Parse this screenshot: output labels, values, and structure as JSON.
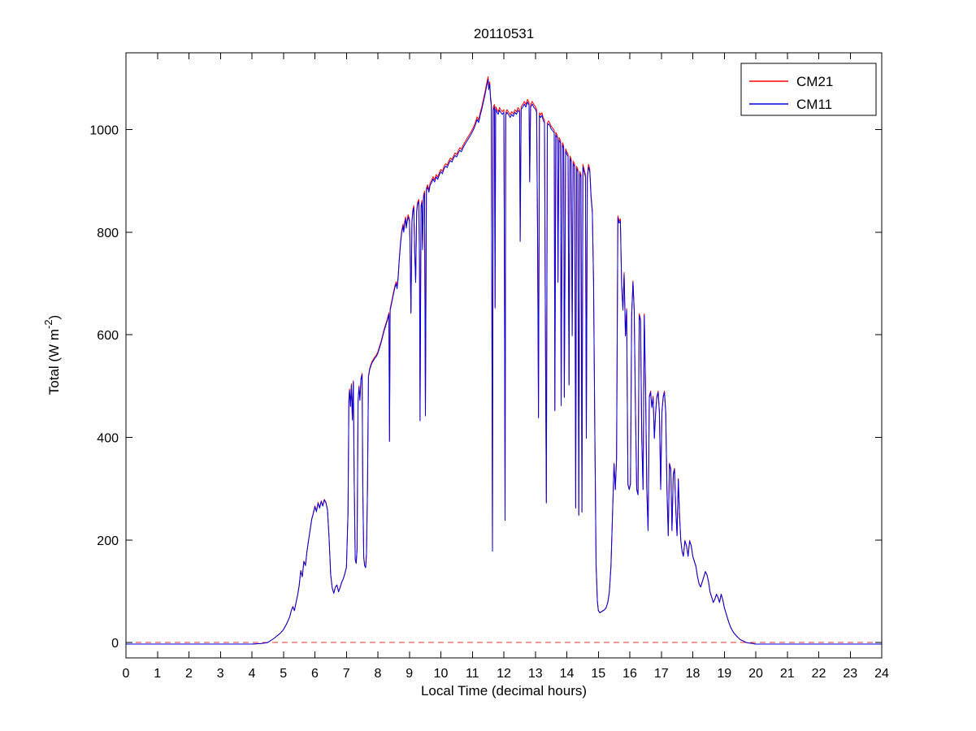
{
  "chart_data": {
    "type": "line",
    "title": "20110531",
    "xlabel": "Local Time (decimal hours)",
    "ylabel": "Total (W m⁻²)",
    "ylabel_parts": [
      "Total (W m",
      "-2",
      ")"
    ],
    "xlim": [
      0,
      24
    ],
    "ylim": [
      -30,
      1150
    ],
    "xticks": [
      0,
      1,
      2,
      3,
      4,
      5,
      6,
      7,
      8,
      9,
      10,
      11,
      12,
      13,
      14,
      15,
      16,
      17,
      18,
      19,
      20,
      21,
      22,
      23,
      24
    ],
    "yticks": [
      0,
      200,
      400,
      600,
      800,
      1000
    ],
    "grid": false,
    "legend_location": "northeast",
    "zero_line": {
      "y": 0,
      "color": "#e83030",
      "style": "dashed"
    },
    "series": [
      {
        "name": "CM21",
        "color": "#ff0000",
        "scale": 1.005
      },
      {
        "name": "CM11",
        "color": "#0000dd",
        "scale": 1.0
      }
    ],
    "points": [
      [
        0,
        -3
      ],
      [
        0.5,
        -3
      ],
      [
        1,
        -3
      ],
      [
        1.5,
        -3
      ],
      [
        2,
        -3
      ],
      [
        2.5,
        -3
      ],
      [
        3,
        -3
      ],
      [
        3.5,
        -3
      ],
      [
        4,
        -3
      ],
      [
        4.3,
        -2
      ],
      [
        4.5,
        0
      ],
      [
        4.6,
        4
      ],
      [
        4.7,
        8
      ],
      [
        4.8,
        13
      ],
      [
        4.9,
        18
      ],
      [
        5,
        25
      ],
      [
        5.1,
        36
      ],
      [
        5.2,
        50
      ],
      [
        5.25,
        62
      ],
      [
        5.3,
        70
      ],
      [
        5.35,
        62
      ],
      [
        5.4,
        78
      ],
      [
        5.45,
        92
      ],
      [
        5.5,
        110
      ],
      [
        5.55,
        140
      ],
      [
        5.6,
        128
      ],
      [
        5.65,
        158
      ],
      [
        5.7,
        150
      ],
      [
        5.75,
        178
      ],
      [
        5.8,
        200
      ],
      [
        5.85,
        220
      ],
      [
        5.9,
        240
      ],
      [
        5.95,
        252
      ],
      [
        6,
        265
      ],
      [
        6.05,
        255
      ],
      [
        6.1,
        272
      ],
      [
        6.15,
        262
      ],
      [
        6.2,
        275
      ],
      [
        6.25,
        266
      ],
      [
        6.3,
        278
      ],
      [
        6.35,
        272
      ],
      [
        6.4,
        258
      ],
      [
        6.45,
        205
      ],
      [
        6.5,
        132
      ],
      [
        6.55,
        106
      ],
      [
        6.6,
        96
      ],
      [
        6.65,
        108
      ],
      [
        6.7,
        112
      ],
      [
        6.75,
        99
      ],
      [
        6.8,
        107
      ],
      [
        6.85,
        117
      ],
      [
        6.9,
        124
      ],
      [
        6.95,
        134
      ],
      [
        7,
        146
      ],
      [
        7.05,
        250
      ],
      [
        7.08,
        470
      ],
      [
        7.1,
        492
      ],
      [
        7.13,
        460
      ],
      [
        7.16,
        502
      ],
      [
        7.19,
        434
      ],
      [
        7.22,
        508
      ],
      [
        7.25,
        310
      ],
      [
        7.28,
        162
      ],
      [
        7.31,
        154
      ],
      [
        7.34,
        182
      ],
      [
        7.37,
        470
      ],
      [
        7.4,
        498
      ],
      [
        7.43,
        472
      ],
      [
        7.46,
        512
      ],
      [
        7.5,
        522
      ],
      [
        7.52,
        305
      ],
      [
        7.55,
        166
      ],
      [
        7.58,
        150
      ],
      [
        7.61,
        146
      ],
      [
        7.64,
        172
      ],
      [
        7.67,
        300
      ],
      [
        7.7,
        518
      ],
      [
        7.74,
        532
      ],
      [
        7.78,
        540
      ],
      [
        7.82,
        546
      ],
      [
        7.86,
        550
      ],
      [
        7.9,
        554
      ],
      [
        7.95,
        558
      ],
      [
        8,
        564
      ],
      [
        8.05,
        574
      ],
      [
        8.1,
        584
      ],
      [
        8.15,
        596
      ],
      [
        8.2,
        608
      ],
      [
        8.25,
        618
      ],
      [
        8.3,
        628
      ],
      [
        8.35,
        640
      ],
      [
        8.37,
        392
      ],
      [
        8.39,
        648
      ],
      [
        8.44,
        662
      ],
      [
        8.49,
        678
      ],
      [
        8.54,
        692
      ],
      [
        8.58,
        700
      ],
      [
        8.61,
        690
      ],
      [
        8.64,
        708
      ],
      [
        8.68,
        745
      ],
      [
        8.72,
        778
      ],
      [
        8.76,
        800
      ],
      [
        8.8,
        812
      ],
      [
        8.82,
        800
      ],
      [
        8.85,
        816
      ],
      [
        8.88,
        826
      ],
      [
        8.9,
        808
      ],
      [
        8.93,
        820
      ],
      [
        8.96,
        830
      ],
      [
        9,
        822
      ],
      [
        9.02,
        782
      ],
      [
        9.05,
        642
      ],
      [
        9.08,
        818
      ],
      [
        9.11,
        840
      ],
      [
        9.14,
        848
      ],
      [
        9.17,
        762
      ],
      [
        9.2,
        702
      ],
      [
        9.23,
        838
      ],
      [
        9.26,
        854
      ],
      [
        9.3,
        860
      ],
      [
        9.32,
        742
      ],
      [
        9.34,
        432
      ],
      [
        9.37,
        848
      ],
      [
        9.4,
        858
      ],
      [
        9.42,
        766
      ],
      [
        9.45,
        868
      ],
      [
        9.48,
        876
      ],
      [
        9.51,
        442
      ],
      [
        9.54,
        882
      ],
      [
        9.58,
        888
      ],
      [
        9.62,
        878
      ],
      [
        9.66,
        892
      ],
      [
        9.7,
        896
      ],
      [
        9.75,
        904
      ],
      [
        9.8,
        898
      ],
      [
        9.85,
        908
      ],
      [
        9.9,
        903
      ],
      [
        9.95,
        912
      ],
      [
        10,
        918
      ],
      [
        10.05,
        914
      ],
      [
        10.1,
        924
      ],
      [
        10.15,
        929
      ],
      [
        10.2,
        926
      ],
      [
        10.25,
        934
      ],
      [
        10.3,
        940
      ],
      [
        10.35,
        937
      ],
      [
        10.4,
        944
      ],
      [
        10.45,
        950
      ],
      [
        10.5,
        947
      ],
      [
        10.55,
        954
      ],
      [
        10.6,
        960
      ],
      [
        10.65,
        957
      ],
      [
        10.7,
        964
      ],
      [
        10.75,
        970
      ],
      [
        10.8,
        975
      ],
      [
        10.85,
        980
      ],
      [
        10.9,
        985
      ],
      [
        10.95,
        990
      ],
      [
        11,
        996
      ],
      [
        11.05,
        1002
      ],
      [
        11.1,
        1010
      ],
      [
        11.15,
        1020
      ],
      [
        11.2,
        1014
      ],
      [
        11.25,
        1028
      ],
      [
        11.3,
        1040
      ],
      [
        11.35,
        1054
      ],
      [
        11.4,
        1068
      ],
      [
        11.45,
        1084
      ],
      [
        11.5,
        1098
      ],
      [
        11.52,
        1078
      ],
      [
        11.55,
        1088
      ],
      [
        11.58,
        1058
      ],
      [
        11.6,
        1048
      ],
      [
        11.62,
        640
      ],
      [
        11.64,
        178
      ],
      [
        11.66,
        1038
      ],
      [
        11.7,
        1044
      ],
      [
        11.72,
        652
      ],
      [
        11.74,
        1040
      ],
      [
        11.78,
        1034
      ],
      [
        11.82,
        1030
      ],
      [
        11.86,
        1038
      ],
      [
        11.9,
        1034
      ],
      [
        11.95,
        1030
      ],
      [
        12,
        1034
      ],
      [
        12.02,
        700
      ],
      [
        12.04,
        238
      ],
      [
        12.06,
        1028
      ],
      [
        12.1,
        1034
      ],
      [
        12.15,
        1029
      ],
      [
        12.2,
        1024
      ],
      [
        12.25,
        1030
      ],
      [
        12.3,
        1026
      ],
      [
        12.35,
        1034
      ],
      [
        12.4,
        1030
      ],
      [
        12.45,
        1038
      ],
      [
        12.5,
        1034
      ],
      [
        12.52,
        782
      ],
      [
        12.55,
        1040
      ],
      [
        12.6,
        1044
      ],
      [
        12.65,
        1050
      ],
      [
        12.7,
        1044
      ],
      [
        12.75,
        1054
      ],
      [
        12.8,
        1048
      ],
      [
        12.82,
        898
      ],
      [
        12.85,
        1044
      ],
      [
        12.9,
        1050
      ],
      [
        12.95,
        1044
      ],
      [
        13,
        1040
      ],
      [
        13.04,
        1034
      ],
      [
        13.07,
        798
      ],
      [
        13.1,
        438
      ],
      [
        13.13,
        1028
      ],
      [
        13.17,
        1024
      ],
      [
        13.21,
        1028
      ],
      [
        13.25,
        1018
      ],
      [
        13.29,
        1014
      ],
      [
        13.32,
        598
      ],
      [
        13.35,
        272
      ],
      [
        13.38,
        1008
      ],
      [
        13.42,
        1012
      ],
      [
        13.46,
        1008
      ],
      [
        13.5,
        1002
      ],
      [
        13.55,
        998
      ],
      [
        13.6,
        994
      ],
      [
        13.62,
        452
      ],
      [
        13.65,
        990
      ],
      [
        13.7,
        984
      ],
      [
        13.72,
        702
      ],
      [
        13.75,
        980
      ],
      [
        13.8,
        974
      ],
      [
        13.82,
        462
      ],
      [
        13.86,
        970
      ],
      [
        13.9,
        964
      ],
      [
        13.92,
        478
      ],
      [
        13.96,
        958
      ],
      [
        14,
        952
      ],
      [
        14.04,
        948
      ],
      [
        14.07,
        502
      ],
      [
        14.1,
        944
      ],
      [
        14.14,
        938
      ],
      [
        14.17,
        598
      ],
      [
        14.2,
        934
      ],
      [
        14.25,
        928
      ],
      [
        14.28,
        262
      ],
      [
        14.31,
        924
      ],
      [
        14.35,
        918
      ],
      [
        14.38,
        248
      ],
      [
        14.41,
        914
      ],
      [
        14.45,
        908
      ],
      [
        14.48,
        254
      ],
      [
        14.51,
        928
      ],
      [
        14.55,
        918
      ],
      [
        14.59,
        908
      ],
      [
        14.62,
        398
      ],
      [
        14.65,
        904
      ],
      [
        14.69,
        928
      ],
      [
        14.73,
        918
      ],
      [
        14.77,
        868
      ],
      [
        14.81,
        838
      ],
      [
        14.85,
        700
      ],
      [
        14.89,
        402
      ],
      [
        14.93,
        152
      ],
      [
        14.97,
        80
      ],
      [
        15,
        62
      ],
      [
        15.05,
        58
      ],
      [
        15.1,
        60
      ],
      [
        15.15,
        62
      ],
      [
        15.2,
        64
      ],
      [
        15.25,
        68
      ],
      [
        15.3,
        78
      ],
      [
        15.35,
        98
      ],
      [
        15.4,
        148
      ],
      [
        15.45,
        248
      ],
      [
        15.5,
        348
      ],
      [
        15.54,
        298
      ],
      [
        15.58,
        358
      ],
      [
        15.62,
        828
      ],
      [
        15.66,
        818
      ],
      [
        15.7,
        822
      ],
      [
        15.74,
        698
      ],
      [
        15.78,
        648
      ],
      [
        15.82,
        718
      ],
      [
        15.86,
        598
      ],
      [
        15.9,
        648
      ],
      [
        15.94,
        308
      ],
      [
        15.98,
        298
      ],
      [
        16.02,
        308
      ],
      [
        16.06,
        638
      ],
      [
        16.1,
        702
      ],
      [
        16.14,
        648
      ],
      [
        16.18,
        448
      ],
      [
        16.22,
        298
      ],
      [
        16.26,
        288
      ],
      [
        16.3,
        638
      ],
      [
        16.34,
        628
      ],
      [
        16.38,
        398
      ],
      [
        16.42,
        298
      ],
      [
        16.46,
        638
      ],
      [
        16.5,
        498
      ],
      [
        16.54,
        298
      ],
      [
        16.58,
        218
      ],
      [
        16.62,
        478
      ],
      [
        16.66,
        488
      ],
      [
        16.7,
        458
      ],
      [
        16.74,
        478
      ],
      [
        16.78,
        398
      ],
      [
        16.82,
        448
      ],
      [
        16.86,
        478
      ],
      [
        16.9,
        488
      ],
      [
        16.94,
        448
      ],
      [
        16.98,
        298
      ],
      [
        17.02,
        448
      ],
      [
        17.06,
        478
      ],
      [
        17.1,
        488
      ],
      [
        17.14,
        448
      ],
      [
        17.18,
        298
      ],
      [
        17.22,
        208
      ],
      [
        17.26,
        348
      ],
      [
        17.3,
        338
      ],
      [
        17.34,
        218
      ],
      [
        17.38,
        328
      ],
      [
        17.42,
        338
      ],
      [
        17.46,
        258
      ],
      [
        17.5,
        208
      ],
      [
        17.54,
        318
      ],
      [
        17.58,
        248
      ],
      [
        17.62,
        198
      ],
      [
        17.66,
        178
      ],
      [
        17.7,
        168
      ],
      [
        17.75,
        198
      ],
      [
        17.8,
        188
      ],
      [
        17.85,
        168
      ],
      [
        17.9,
        198
      ],
      [
        17.95,
        188
      ],
      [
        18,
        168
      ],
      [
        18.05,
        158
      ],
      [
        18.1,
        148
      ],
      [
        18.15,
        128
      ],
      [
        18.2,
        114
      ],
      [
        18.25,
        108
      ],
      [
        18.3,
        118
      ],
      [
        18.35,
        128
      ],
      [
        18.4,
        138
      ],
      [
        18.45,
        132
      ],
      [
        18.5,
        118
      ],
      [
        18.55,
        98
      ],
      [
        18.6,
        88
      ],
      [
        18.65,
        78
      ],
      [
        18.7,
        84
      ],
      [
        18.75,
        94
      ],
      [
        18.8,
        88
      ],
      [
        18.85,
        78
      ],
      [
        18.9,
        94
      ],
      [
        18.95,
        84
      ],
      [
        19,
        68
      ],
      [
        19.05,
        58
      ],
      [
        19.1,
        48
      ],
      [
        19.15,
        38
      ],
      [
        19.2,
        30
      ],
      [
        19.25,
        24
      ],
      [
        19.3,
        19
      ],
      [
        19.4,
        12
      ],
      [
        19.5,
        6
      ],
      [
        19.6,
        3
      ],
      [
        19.7,
        0
      ],
      [
        19.8,
        -1
      ],
      [
        19.9,
        -2
      ],
      [
        20,
        -3
      ],
      [
        20.5,
        -3
      ],
      [
        21,
        -3
      ],
      [
        21.5,
        -3
      ],
      [
        22,
        -3
      ],
      [
        22.5,
        -3
      ],
      [
        23,
        -3
      ],
      [
        23.5,
        -3
      ],
      [
        24,
        -3
      ]
    ]
  }
}
